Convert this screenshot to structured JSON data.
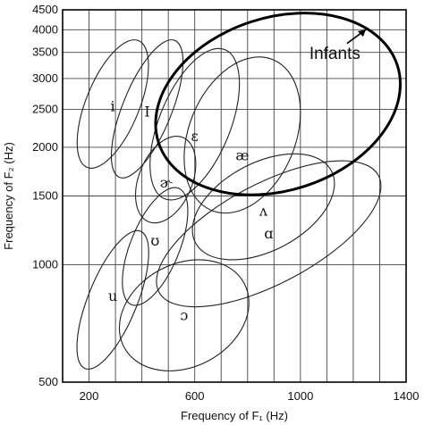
{
  "chart_data": {
    "type": "scatter",
    "title": "",
    "xlabel": "Frequency of F₁ (Hz)",
    "ylabel": "Frequency of F₂ (Hz)",
    "xlim": [
      100,
      1400
    ],
    "ylim": [
      500,
      4500
    ],
    "y_scale": "log",
    "grid": true,
    "x_ticks": [
      200,
      600,
      1000,
      1400
    ],
    "x_gridlines": [
      100,
      200,
      300,
      400,
      500,
      600,
      700,
      800,
      900,
      1000,
      1100,
      1200,
      1300,
      1400
    ],
    "y_ticks": [
      4500,
      4000,
      3500,
      3000,
      2500,
      2000,
      1500,
      1000,
      500
    ],
    "vowel_regions": [
      {
        "label": "i",
        "f1": 290,
        "f2": 2540,
        "f1_halfwidth": 80,
        "f2_range": [
          1800,
          3700
        ]
      },
      {
        "label": "I",
        "f1": 420,
        "f2": 2460,
        "f1_halfwidth": 70,
        "f2_range": [
          1700,
          3700
        ]
      },
      {
        "label": "ɛ",
        "f1": 600,
        "f2": 2130,
        "f1_halfwidth": 120,
        "f2_range": [
          1500,
          3500
        ]
      },
      {
        "label": "æ",
        "f1": 780,
        "f2": 1900,
        "f1_halfwidth": 200,
        "f2_range": [
          1400,
          3300
        ]
      },
      {
        "label": "ɚ",
        "f1": 490,
        "f2": 1620,
        "f1_halfwidth": 80,
        "f2_range": [
          1300,
          2100
        ]
      },
      {
        "label": "ʌ",
        "f1": 860,
        "f2": 1370,
        "f1_halfwidth": 260,
        "f2_range": [
          1100,
          1800
        ]
      },
      {
        "label": "ʊ",
        "f1": 450,
        "f2": 1150,
        "f1_halfwidth": 70,
        "f2_range": [
          800,
          1550
        ]
      },
      {
        "label": "ɑ",
        "f1": 880,
        "f2": 1200,
        "f1_halfwidth": 420,
        "f2_range": [
          900,
          1600
        ]
      },
      {
        "label": "u",
        "f1": 290,
        "f2": 830,
        "f1_halfwidth": 70,
        "f2_range": [
          550,
          1200
        ]
      },
      {
        "label": "ɔ",
        "f1": 560,
        "f2": 740,
        "f1_halfwidth": 230,
        "f2_range": [
          550,
          1000
        ]
      }
    ],
    "annotations": [
      {
        "text": "Infants",
        "region_f1": [
          440,
          1390
        ],
        "region_f2": [
          1550,
          4300
        ]
      }
    ]
  }
}
